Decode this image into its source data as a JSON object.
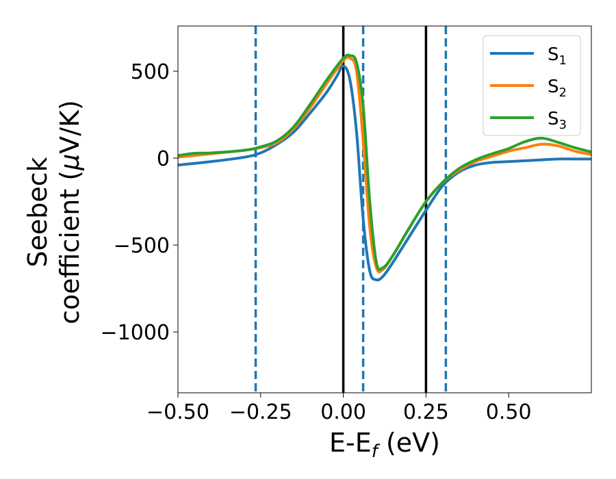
{
  "chart_data": {
    "type": "line",
    "xlabel": "E-E",
    "xlabel_sub": "f",
    "xlabel_unit": " (eV)",
    "ylabel_line1": "Seebeck",
    "ylabel_line2": "coefficient  (",
    "ylabel_mu": "μ",
    "ylabel_unit": "V/K)",
    "xlim": [
      -0.5,
      0.75
    ],
    "ylim": [
      -1350,
      760
    ],
    "x_ticks": [
      -0.5,
      -0.25,
      0.0,
      0.25,
      0.5
    ],
    "x_tick_labels": [
      "−0.50",
      "−0.25",
      "0.00",
      "0.25",
      "0.50"
    ],
    "y_ticks": [
      500,
      0,
      -500,
      -1000
    ],
    "y_tick_labels": [
      "500",
      "0",
      "−500",
      "−1000"
    ],
    "grid": false,
    "legend_position": "top-right",
    "vertical_lines": [
      {
        "x": 0.0,
        "style": "solid",
        "color": "#000000"
      },
      {
        "x": 0.25,
        "style": "solid",
        "color": "#000000"
      },
      {
        "x": -0.265,
        "style": "dashed",
        "color": "#1f77b4"
      },
      {
        "x": 0.06,
        "style": "dashed",
        "color": "#1f77b4"
      },
      {
        "x": 0.31,
        "style": "dashed",
        "color": "#1f77b4"
      }
    ],
    "series": [
      {
        "name": "S",
        "sub": "1",
        "color": "#1f77b4",
        "x": [
          -0.5,
          -0.4,
          -0.3,
          -0.25,
          -0.2,
          -0.15,
          -0.1,
          -0.05,
          -0.02,
          0.0,
          0.02,
          0.04,
          0.06,
          0.08,
          0.1,
          0.12,
          0.15,
          0.2,
          0.25,
          0.3,
          0.35,
          0.4,
          0.45,
          0.5,
          0.55,
          0.6,
          0.65,
          0.7,
          0.75
        ],
        "values": [
          -40,
          -20,
          5,
          30,
          80,
          150,
          260,
          380,
          470,
          530,
          450,
          150,
          -350,
          -650,
          -700,
          -680,
          -600,
          -450,
          -300,
          -160,
          -80,
          -40,
          -25,
          -20,
          -15,
          -10,
          -5,
          -5,
          -5
        ]
      },
      {
        "name": "S",
        "sub": "2",
        "color": "#ff7f0e",
        "x": [
          -0.5,
          -0.45,
          -0.4,
          -0.3,
          -0.25,
          -0.2,
          -0.15,
          -0.1,
          -0.05,
          0.0,
          0.02,
          0.04,
          0.06,
          0.08,
          0.1,
          0.12,
          0.15,
          0.2,
          0.25,
          0.3,
          0.35,
          0.4,
          0.45,
          0.5,
          0.55,
          0.6,
          0.65,
          0.7,
          0.75
        ],
        "values": [
          5,
          15,
          25,
          45,
          60,
          90,
          170,
          290,
          430,
          560,
          575,
          500,
          100,
          -400,
          -630,
          -640,
          -560,
          -400,
          -250,
          -140,
          -70,
          -20,
          10,
          40,
          60,
          80,
          70,
          40,
          20
        ]
      },
      {
        "name": "S",
        "sub": "3",
        "color": "#2ca02c",
        "x": [
          -0.5,
          -0.45,
          -0.4,
          -0.3,
          -0.25,
          -0.2,
          -0.15,
          -0.1,
          -0.05,
          0.0,
          0.02,
          0.04,
          0.06,
          0.08,
          0.1,
          0.12,
          0.15,
          0.2,
          0.25,
          0.3,
          0.35,
          0.4,
          0.45,
          0.5,
          0.55,
          0.6,
          0.65,
          0.7,
          0.75
        ],
        "values": [
          15,
          28,
          30,
          45,
          65,
          100,
          180,
          310,
          450,
          575,
          590,
          550,
          300,
          -250,
          -600,
          -630,
          -560,
          -400,
          -250,
          -140,
          -60,
          -10,
          25,
          55,
          95,
          115,
          90,
          60,
          35
        ]
      }
    ]
  }
}
